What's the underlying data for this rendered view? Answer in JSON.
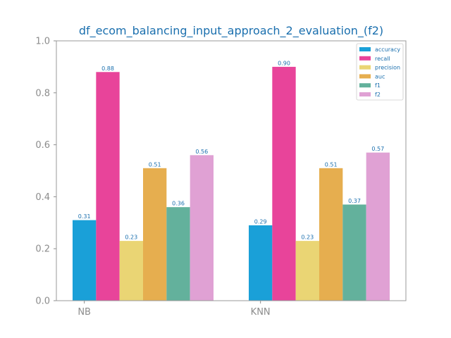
{
  "chart_data": {
    "type": "bar",
    "title": "df_ecom_balancing_input_approach_2_evaluation_(f2)",
    "xlabel": "",
    "ylabel": "",
    "categories": [
      "NB",
      "KNN"
    ],
    "ylim": [
      0,
      1.0
    ],
    "yticks": [
      "0.0",
      "0.2",
      "0.4",
      "0.6",
      "0.8",
      "1.0"
    ],
    "grid": false,
    "legend_position": "top-right",
    "series": [
      {
        "name": "accuracy",
        "color": "#1aa0d8",
        "values": [
          0.31,
          0.29
        ],
        "labels": [
          "0.31",
          "0.29"
        ]
      },
      {
        "name": "recall",
        "color": "#e8449a",
        "values": [
          0.88,
          0.9
        ],
        "labels": [
          "0.88",
          "0.90"
        ]
      },
      {
        "name": "precision",
        "color": "#ead574",
        "values": [
          0.23,
          0.23
        ],
        "labels": [
          "0.23",
          "0.23"
        ]
      },
      {
        "name": "auc",
        "color": "#e6ae4f",
        "values": [
          0.51,
          0.51
        ],
        "labels": [
          "0.51",
          "0.51"
        ]
      },
      {
        "name": "f1",
        "color": "#63b19c",
        "values": [
          0.36,
          0.37
        ],
        "labels": [
          "0.36",
          "0.37"
        ]
      },
      {
        "name": "f2",
        "color": "#e0a1d4",
        "values": [
          0.56,
          0.57
        ],
        "labels": [
          "0.56",
          "0.57"
        ]
      }
    ]
  }
}
